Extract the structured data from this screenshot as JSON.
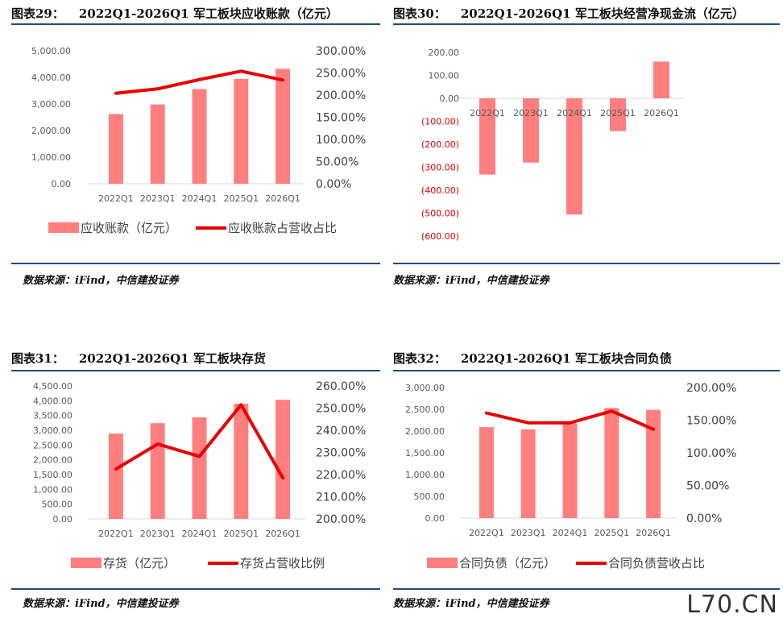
{
  "watermark": "L70.CN",
  "colors": {
    "bar": "#ff7f7f",
    "line": "#e80000",
    "axis": "#d9d9d9",
    "tick": "#595959",
    "negative": "#e00000",
    "rule": "#1f4e79"
  },
  "panels": [
    {
      "label": "图表29：",
      "title": "2022Q1-2026Q1 军工板块应收账款（亿元）",
      "source": "数据来源：iFind，中信建投证券",
      "chart_data": {
        "type": "bar",
        "categories": [
          "2022Q1",
          "2023Q1",
          "2024Q1",
          "2025Q1",
          "2026Q1"
        ],
        "series": [
          {
            "name": "应收账款（亿元）",
            "kind": "bar",
            "axis": "left",
            "values": [
              2620,
              2980,
              3560,
              3940,
              4320
            ]
          },
          {
            "name": "应收账款占营收占比",
            "kind": "line",
            "axis": "right",
            "values": [
              204,
              214,
              235,
              254,
              234
            ]
          }
        ],
        "left_axis": {
          "min": 0,
          "max": 5000,
          "step": 1000,
          "format": "thousands2",
          "ticks": [
            "0.00",
            "1,000.00",
            "2,000.00",
            "3,000.00",
            "4,000.00",
            "5,000.00"
          ]
        },
        "right_axis": {
          "min": 0,
          "max": 300,
          "step": 50,
          "ticks": [
            "0.00%",
            "50.00%",
            "100.00%",
            "150.00%",
            "200.00%",
            "250.00%",
            "300.00%"
          ]
        },
        "legend_placement": "bottom",
        "grid": false
      }
    },
    {
      "label": "图表30：",
      "title": "2022Q1-2026Q1 军工板块经营净现金流（亿元）",
      "source": "数据来源：iFind，中信建投证券",
      "chart_data": {
        "type": "bar",
        "categories": [
          "2022Q1",
          "2023Q1",
          "2024Q1",
          "2025Q1",
          "2026Q1"
        ],
        "series": [
          {
            "kind": "bar",
            "axis": "left",
            "values": [
              -332,
              -280,
              -506,
              -143,
              160
            ]
          }
        ],
        "left_axis": {
          "min": -600,
          "max": 200,
          "step": 100,
          "ticks": [
            "(600.00)",
            "(500.00)",
            "(400.00)",
            "(300.00)",
            "(200.00)",
            "(100.00)",
            "0.00",
            "100.00",
            "200.00"
          ]
        },
        "legend_placement": "none",
        "grid": false
      }
    },
    {
      "label": "图表31：",
      "title": "2022Q1-2026Q1 军工板块存货",
      "source": "数据来源：iFind，中信建投证券",
      "chart_data": {
        "type": "bar",
        "categories": [
          "2022Q1",
          "2023Q1",
          "2024Q1",
          "2025Q1",
          "2026Q1"
        ],
        "series": [
          {
            "name": "存货（亿元）",
            "kind": "bar",
            "axis": "left",
            "values": [
              2890,
              3240,
              3440,
              3900,
              4030
            ]
          },
          {
            "name": "存货占营收比例",
            "kind": "line",
            "axis": "right",
            "values": [
              222.5,
              233.8,
              228.2,
              251.5,
              218.5
            ]
          }
        ],
        "left_axis": {
          "min": 0,
          "max": 4500,
          "step": 500,
          "ticks": [
            "0.00",
            "500.00",
            "1,000.00",
            "1,500.00",
            "2,000.00",
            "2,500.00",
            "3,000.00",
            "3,500.00",
            "4,000.00",
            "4,500.00"
          ]
        },
        "right_axis": {
          "min": 200,
          "max": 260,
          "step": 10,
          "ticks": [
            "200.00%",
            "210.00%",
            "220.00%",
            "230.00%",
            "240.00%",
            "250.00%",
            "260.00%"
          ]
        },
        "legend_placement": "bottom",
        "grid": false
      }
    },
    {
      "label": "图表32：",
      "title": "2022Q1-2026Q1 军工板块合同负债",
      "source": "数据来源：iFind，中信建投证券",
      "chart_data": {
        "type": "bar",
        "categories": [
          "2022Q1",
          "2023Q1",
          "2024Q1",
          "2025Q1",
          "2026Q1"
        ],
        "series": [
          {
            "name": "合同负债（亿元）",
            "kind": "bar",
            "axis": "left",
            "values": [
              2090,
              2040,
              2180,
              2530,
              2490
            ]
          },
          {
            "name": "合同负债营收占比",
            "kind": "line",
            "axis": "right",
            "values": [
              161,
              146,
              146,
              164,
              136
            ]
          }
        ],
        "left_axis": {
          "min": 0,
          "max": 3000,
          "step": 500,
          "ticks": [
            "0.00",
            "500.00",
            "1,000.00",
            "1,500.00",
            "2,000.00",
            "2,500.00",
            "3,000.00"
          ]
        },
        "right_axis": {
          "min": 0,
          "max": 200,
          "step": 50,
          "ticks": [
            "0.00%",
            "50.00%",
            "100.00%",
            "150.00%",
            "200.00%"
          ]
        },
        "legend_placement": "bottom",
        "grid": false
      }
    }
  ]
}
